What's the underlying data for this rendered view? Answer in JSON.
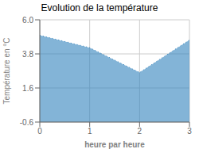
{
  "chart_data": {
    "type": "area",
    "title": "Evolution de la température",
    "xlabel": "heure par heure",
    "ylabel": "Température en °C",
    "x": [
      0,
      1,
      2,
      3
    ],
    "values": [
      5.0,
      4.2,
      2.6,
      4.7
    ],
    "xlim": [
      0,
      3
    ],
    "ylim": [
      -0.6,
      6.0
    ],
    "xticks": [
      0,
      1,
      2,
      3
    ],
    "yticks": [
      -0.6,
      1.6,
      3.8,
      {
        "value": 6.0,
        "label": "6.0"
      }
    ],
    "grid": true,
    "line_style": "dotted"
  }
}
